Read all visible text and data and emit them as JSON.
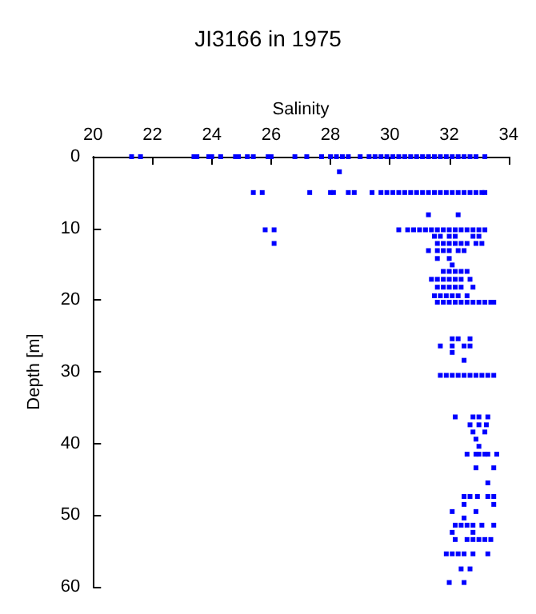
{
  "chart_data": {
    "type": "scatter",
    "title": "JI3166 in 1975",
    "xlabel": "Salinity",
    "ylabel": "Depth [m]",
    "xlim": [
      20,
      34
    ],
    "xticks": [
      20,
      22,
      24,
      26,
      28,
      30,
      32,
      34
    ],
    "ylim": [
      60,
      0
    ],
    "yticks": [
      0,
      10,
      20,
      30,
      40,
      50,
      60
    ],
    "grid": false,
    "marker": "square",
    "series": [
      {
        "color": "#0000ff",
        "x": [
          21.3,
          21.6,
          23.4,
          23.5,
          23.9,
          24.0,
          24.3,
          24.8,
          24.9,
          25.2,
          25.4,
          25.9,
          26.0,
          26.8,
          27.2,
          27.7,
          28.0,
          28.2,
          28.4,
          28.6,
          29.0,
          29.3,
          29.5,
          29.7,
          29.9,
          30.1,
          30.3,
          30.5,
          30.7,
          30.9,
          31.1,
          31.3,
          31.5,
          31.7,
          31.9,
          32.1,
          32.3,
          32.5,
          32.7,
          32.9,
          33.2,
          28.3,
          25.4,
          25.7,
          27.3,
          28.0,
          28.1,
          28.6,
          28.8,
          29.4,
          29.7,
          29.9,
          30.1,
          30.3,
          30.5,
          30.7,
          30.9,
          31.1,
          31.3,
          31.5,
          31.7,
          31.9,
          32.1,
          32.3,
          32.5,
          32.7,
          32.9,
          33.1,
          33.2,
          31.3,
          32.3,
          25.8,
          26.1,
          30.3,
          30.6,
          30.8,
          31.0,
          31.2,
          31.4,
          31.6,
          31.8,
          32.0,
          32.2,
          32.4,
          32.6,
          32.8,
          33.0,
          33.2,
          31.5,
          31.7,
          32.0,
          32.2,
          32.8,
          33.0,
          26.1,
          31.6,
          31.8,
          32.0,
          32.2,
          32.4,
          32.6,
          32.9,
          33.1,
          31.3,
          31.6,
          31.8,
          32.0,
          32.3,
          32.5,
          31.6,
          32.0,
          32.1,
          31.8,
          32.0,
          32.2,
          32.4,
          32.6,
          31.4,
          31.6,
          31.8,
          32.0,
          32.2,
          32.4,
          32.7,
          31.6,
          31.8,
          32.0,
          32.2,
          32.4,
          32.8,
          31.5,
          31.7,
          31.9,
          32.1,
          32.3,
          32.6,
          31.6,
          31.8,
          32.0,
          32.2,
          32.4,
          32.6,
          32.8,
          33.0,
          33.2,
          33.4,
          33.5,
          32.1,
          32.3,
          32.7,
          31.7,
          32.1,
          32.5,
          32.7,
          32.1,
          32.5,
          31.7,
          31.9,
          32.1,
          32.3,
          32.5,
          32.7,
          32.9,
          33.1,
          33.3,
          33.5,
          32.2,
          32.8,
          33.0,
          33.3,
          32.7,
          33.0,
          33.25,
          32.8,
          33.2,
          32.9,
          33.0,
          32.6,
          32.9,
          33.0,
          33.2,
          33.3,
          33.6,
          32.9,
          33.5,
          33.3,
          32.5,
          32.7,
          32.95,
          33.3,
          33.5,
          32.5,
          33.5,
          32.1,
          32.9,
          32.5,
          32.2,
          32.4,
          32.6,
          32.8,
          33.1,
          33.5,
          32.1,
          32.8,
          32.2,
          32.6,
          32.8,
          33.0,
          33.2,
          33.4,
          31.9,
          32.1,
          32.3,
          32.5,
          32.8,
          33.3,
          32.4,
          32.7,
          32.0,
          32.5
        ],
        "values": [
          0,
          0,
          0,
          0,
          0,
          0,
          0,
          0,
          0,
          0,
          0,
          0,
          0,
          0,
          0,
          0,
          0,
          0,
          0,
          0,
          0,
          0,
          0,
          0,
          0,
          0,
          0,
          0,
          0,
          0,
          0,
          0,
          0,
          0,
          0,
          0,
          0,
          0,
          0,
          0,
          0,
          2.1,
          5,
          5,
          5,
          5,
          5,
          5,
          5,
          5,
          5,
          5,
          5,
          5,
          5,
          5,
          5,
          5,
          5,
          5,
          5,
          5,
          5,
          5,
          5,
          5,
          5,
          5,
          5,
          8.1,
          8.1,
          10.2,
          10.2,
          10.2,
          10.2,
          10.2,
          10.2,
          10.2,
          10.2,
          10.2,
          10.2,
          10.2,
          10.2,
          10.2,
          10.2,
          10.2,
          10.2,
          10.2,
          11.1,
          11.1,
          11.1,
          11.1,
          11.1,
          11.1,
          12.1,
          12.1,
          12.1,
          12.1,
          12.1,
          12.1,
          12.1,
          12.1,
          12.1,
          13.1,
          13.1,
          13.1,
          13.1,
          13.1,
          13.1,
          14.2,
          14.2,
          15.1,
          16.0,
          16.0,
          16.0,
          16.0,
          16.0,
          17.1,
          17.1,
          17.1,
          17.1,
          17.1,
          17.1,
          17.1,
          18.2,
          18.2,
          18.2,
          18.2,
          18.2,
          18.2,
          19.4,
          19.4,
          19.4,
          19.4,
          19.4,
          19.4,
          20.3,
          20.3,
          20.3,
          20.3,
          20.3,
          20.3,
          20.3,
          20.3,
          20.3,
          20.3,
          20.3,
          25.4,
          25.4,
          25.4,
          26.4,
          26.4,
          26.4,
          26.4,
          27.3,
          28.4,
          30.5,
          30.5,
          30.5,
          30.5,
          30.5,
          30.5,
          30.5,
          30.5,
          30.5,
          30.5,
          36.3,
          36.3,
          36.3,
          36.3,
          37.4,
          37.4,
          37.4,
          38.4,
          38.4,
          39.4,
          40.4,
          41.5,
          41.5,
          41.5,
          41.5,
          41.5,
          41.5,
          43.4,
          43.4,
          45.5,
          47.4,
          47.4,
          47.4,
          47.4,
          47.4,
          48.5,
          48.5,
          49.5,
          49.5,
          50.4,
          51.4,
          51.4,
          51.4,
          51.4,
          51.4,
          51.4,
          52.4,
          52.4,
          53.4,
          53.4,
          53.4,
          53.4,
          53.4,
          53.4,
          55.4,
          55.4,
          55.4,
          55.4,
          55.4,
          55.4,
          57.5,
          57.5,
          59.4,
          59.4
        ]
      }
    ]
  }
}
